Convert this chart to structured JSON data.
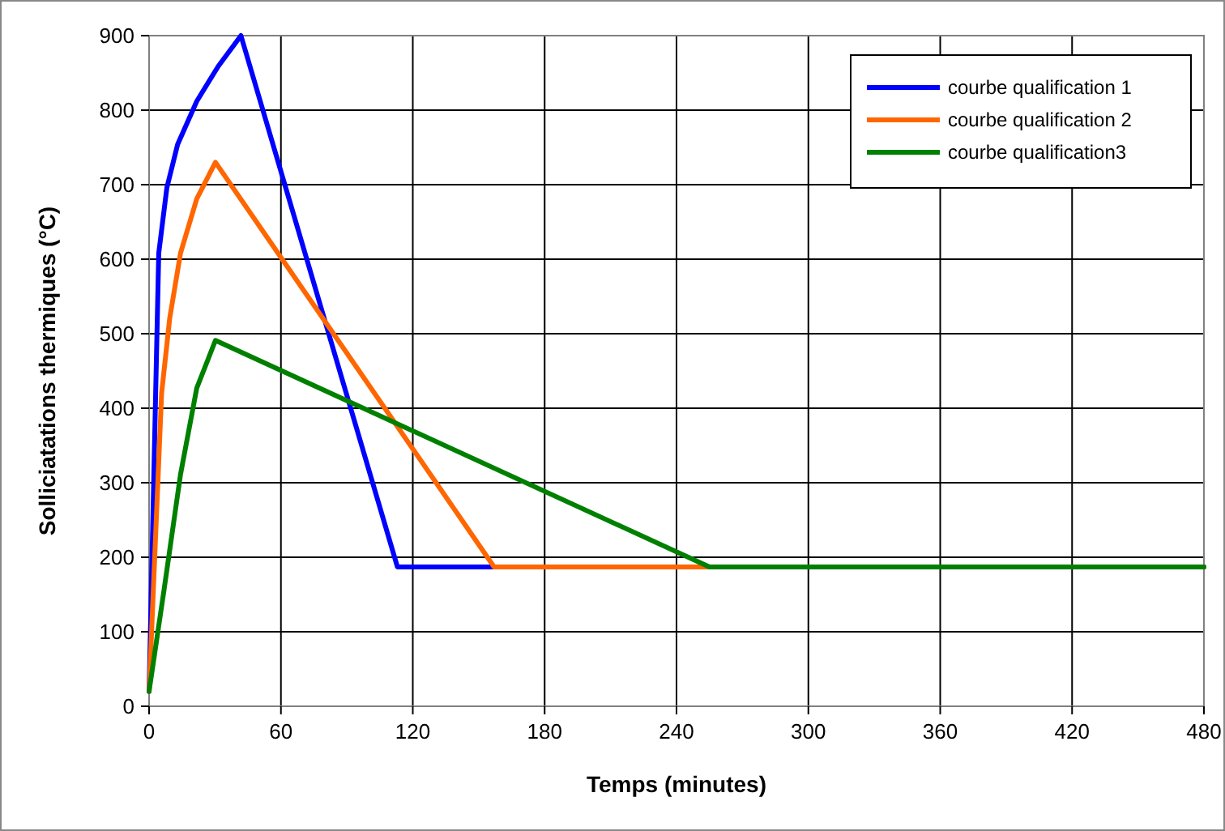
{
  "chart_data": {
    "type": "line",
    "xlabel": "Temps (minutes)",
    "ylabel": "Solliciatations thermiques (°C)",
    "xlim": [
      0,
      480
    ],
    "xticks": [
      0,
      60,
      120,
      180,
      240,
      300,
      360,
      420,
      480
    ],
    "ylim": [
      0,
      900
    ],
    "yticks": [
      0,
      100,
      200,
      300,
      400,
      500,
      600,
      700,
      800,
      900
    ],
    "grid": true,
    "legend": "top right",
    "marker": "none",
    "line_style": "solid",
    "series": [
      {
        "name": "courbe qualification 1",
        "color": "#0000ff",
        "x": [
          0,
          4.4,
          8.1,
          13,
          21.7,
          31.5,
          41.8,
          113,
          480
        ],
        "values": [
          20,
          608,
          696,
          754,
          812,
          859,
          900,
          187,
          187
        ]
      },
      {
        "name": "courbe qualification 2",
        "color": "#ff6600",
        "x": [
          0,
          5.7,
          9.4,
          14.3,
          21.7,
          30.2,
          157,
          480
        ],
        "values": [
          20,
          420,
          521,
          608,
          681,
          730,
          187,
          187
        ]
      },
      {
        "name": "courbe qualification3",
        "color": "#008000",
        "x": [
          0,
          6.9,
          14.3,
          21.7,
          30.2,
          255,
          480
        ],
        "values": [
          20,
          158,
          311,
          427,
          491,
          187,
          187
        ]
      }
    ]
  }
}
